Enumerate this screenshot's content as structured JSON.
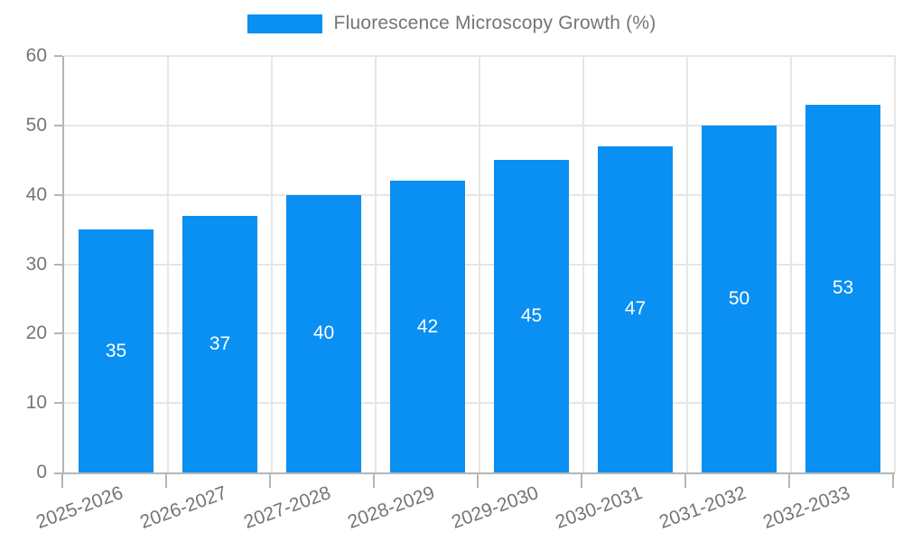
{
  "legend": {
    "label": "Fluorescence Microscopy Growth (%)"
  },
  "chart_data": {
    "type": "bar",
    "title": "Fluorescence Microscopy Growth (%)",
    "categories": [
      "2025-2026",
      "2026-2027",
      "2027-2028",
      "2028-2029",
      "2029-2030",
      "2030-2031",
      "2031-2032",
      "2032-2033"
    ],
    "values": [
      35,
      37,
      40,
      42,
      45,
      47,
      50,
      53
    ],
    "series": [
      {
        "name": "Fluorescence Microscopy Growth (%)",
        "values": [
          35,
          37,
          40,
          42,
          45,
          47,
          50,
          53
        ]
      }
    ],
    "xlabel": "",
    "ylabel": "",
    "ylim": [
      0,
      60
    ],
    "yticks": [
      0,
      10,
      20,
      30,
      40,
      50,
      60
    ],
    "grid": true,
    "legend_position": "top-center",
    "value_labels": "inside-center"
  },
  "colors": {
    "bar": "#0a8ff2",
    "grid": "#e6e6e6",
    "axis": "#b5b5b5",
    "text": "#757575",
    "value_label": "#ffffff",
    "background": "#ffffff"
  }
}
